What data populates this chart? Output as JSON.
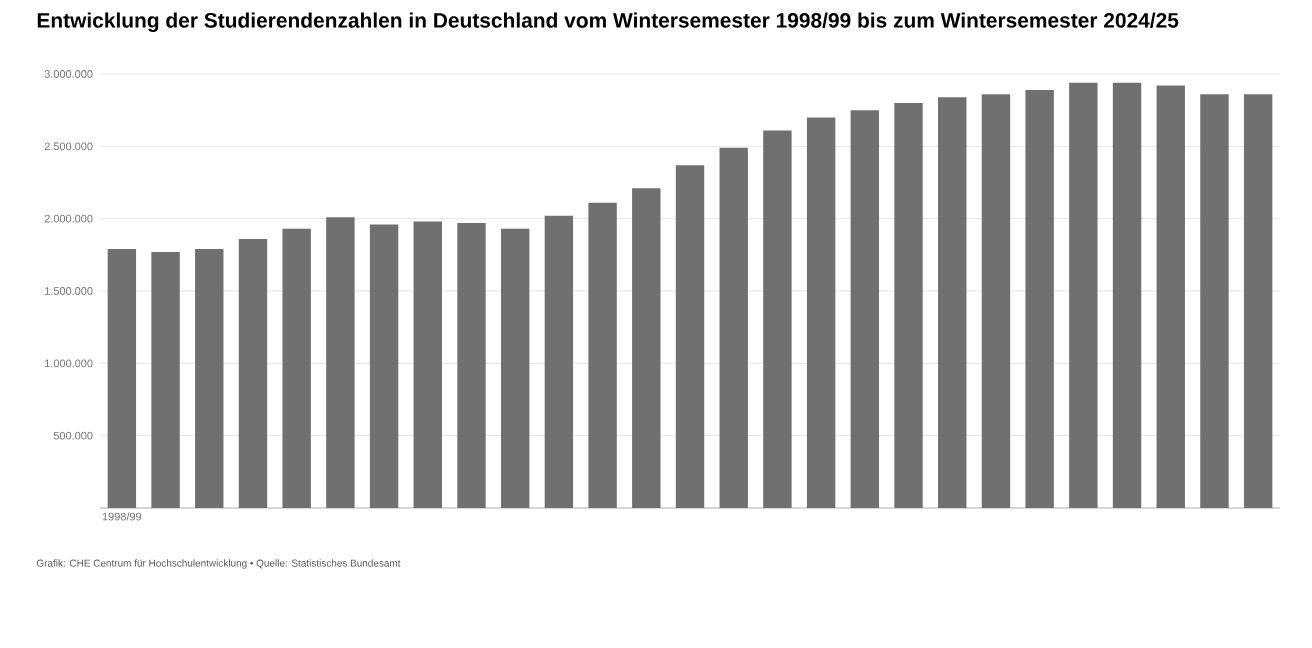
{
  "chart_data": {
    "type": "bar",
    "title": "Entwicklung der Studierendenzahlen in Deutschland vom Wintersemester 1998/99 bis zum Wintersemester 2024/25",
    "categories": [
      "1998/99",
      null,
      null,
      null,
      null,
      null,
      null,
      null,
      null,
      null,
      null,
      null,
      null,
      null,
      null,
      null,
      null,
      null,
      null,
      null,
      null,
      null,
      null,
      null,
      null,
      null,
      null
    ],
    "values": [
      1790000,
      1770000,
      1790000,
      1860000,
      1930000,
      2010000,
      1960000,
      1980000,
      1970000,
      1930000,
      2020000,
      2110000,
      2210000,
      2370000,
      2490000,
      2610000,
      2700000,
      2750000,
      2800000,
      2840000,
      2860000,
      2890000,
      2940000,
      2940000,
      2920000,
      2860000,
      2860000
    ],
    "color": "#707070",
    "ylim": [
      0,
      3000000
    ],
    "yticks": [
      {
        "value": 500000,
        "label": "500.000"
      },
      {
        "value": 1000000,
        "label": "1.000.000"
      },
      {
        "value": 1500000,
        "label": "1.500.000"
      },
      {
        "value": 2000000,
        "label": "2.000.000"
      },
      {
        "value": 2500000,
        "label": "2.500.000"
      },
      {
        "value": 3000000,
        "label": "3.000.000"
      }
    ],
    "grid": "y",
    "annotations": [
      "Grafik: CHE Centrum für Hochschulentwicklung • Quelle: Statistisches Bundesamt"
    ]
  }
}
